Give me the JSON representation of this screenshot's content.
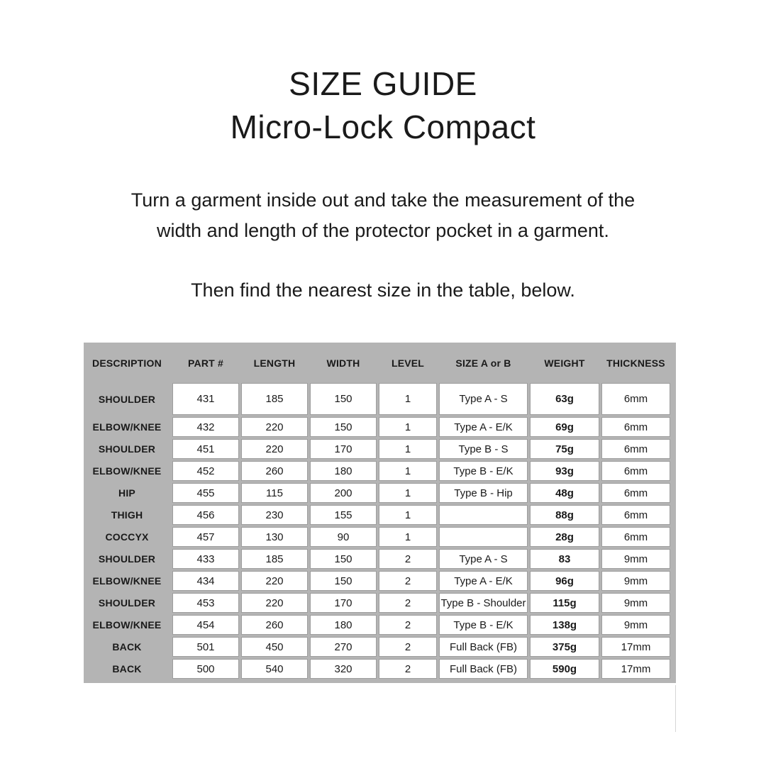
{
  "header": {
    "title_line1": "SIZE GUIDE",
    "title_line2": "Micro-Lock Compact"
  },
  "instructions": {
    "p1_line1": "Turn a garment inside out and take the measurement of the",
    "p1_line2": "width and length of the protector pocket in a garment.",
    "p2": "Then find the nearest size in the table, below."
  },
  "table": {
    "headers": [
      "DESCRIPTION",
      "PART #",
      "LENGTH",
      "WIDTH",
      "LEVEL",
      "SIZE A or B",
      "WEIGHT",
      "THICKNESS"
    ],
    "rows": [
      [
        "SHOULDER",
        "431",
        "185",
        "150",
        "1",
        "Type A - S",
        "63g",
        "6mm"
      ],
      [
        "ELBOW/KNEE",
        "432",
        "220",
        "150",
        "1",
        "Type A - E/K",
        "69g",
        "6mm"
      ],
      [
        "SHOULDER",
        "451",
        "220",
        "170",
        "1",
        "Type B - S",
        "75g",
        "6mm"
      ],
      [
        "ELBOW/KNEE",
        "452",
        "260",
        "180",
        "1",
        "Type B - E/K",
        "93g",
        "6mm"
      ],
      [
        "HIP",
        "455",
        "115",
        "200",
        "1",
        "Type B - Hip",
        "48g",
        "6mm"
      ],
      [
        "THIGH",
        "456",
        "230",
        "155",
        "1",
        "",
        "88g",
        "6mm"
      ],
      [
        "COCCYX",
        "457",
        "130",
        "90",
        "1",
        "",
        "28g",
        "6mm"
      ],
      [
        "SHOULDER",
        "433",
        "185",
        "150",
        "2",
        "Type A - S",
        "83",
        "9mm"
      ],
      [
        "ELBOW/KNEE",
        "434",
        "220",
        "150",
        "2",
        "Type A - E/K",
        "96g",
        "9mm"
      ],
      [
        "SHOULDER",
        "453",
        "220",
        "170",
        "2",
        "Type B - Shoulder",
        "115g",
        "9mm"
      ],
      [
        "ELBOW/KNEE",
        "454",
        "260",
        "180",
        "2",
        "Type B - E/K",
        "138g",
        "9mm"
      ],
      [
        "BACK",
        "501",
        "450",
        "270",
        "2",
        "Full Back (FB)",
        "375g",
        "17mm"
      ],
      [
        "BACK",
        "500",
        "540",
        "320",
        "2",
        "Full Back (FB)",
        "590g",
        "17mm"
      ]
    ],
    "bold_column_index": 6
  },
  "colors": {
    "table_bg": "#b4b4b4",
    "cell_bg": "#ffffff",
    "cell_border": "#9e9e9e",
    "text": "#1a1a1a"
  }
}
